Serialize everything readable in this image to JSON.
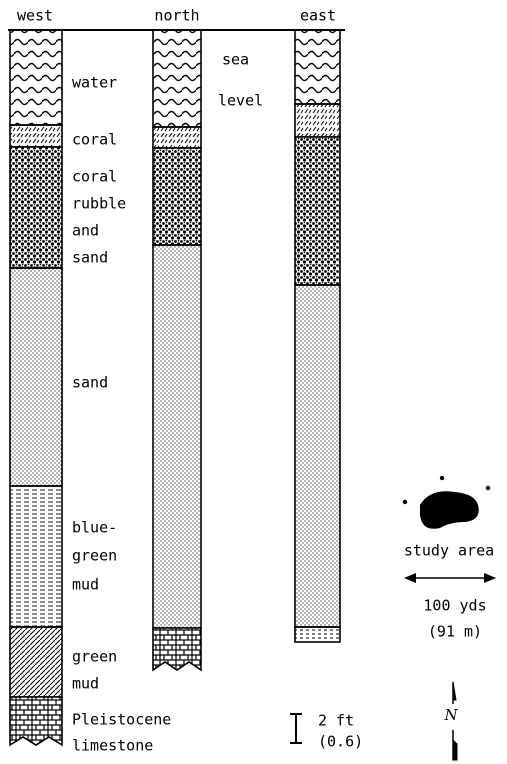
{
  "columns": [
    "west",
    "north",
    "east"
  ],
  "layers": [
    {
      "lines": [
        "water"
      ]
    },
    {
      "lines": [
        "coral"
      ]
    },
    {
      "lines": [
        "coral",
        "rubble",
        "and",
        "sand"
      ]
    },
    {
      "lines": [
        "sand"
      ]
    },
    {
      "lines": [
        "blue-",
        "green",
        "mud"
      ]
    },
    {
      "lines": [
        "green",
        "mud"
      ]
    },
    {
      "lines": [
        "Pleistocene",
        "limestone"
      ]
    }
  ],
  "sea_level": [
    "sea",
    "level"
  ],
  "legend": {
    "study_area": "study area",
    "distance": [
      "100 yds",
      "(91 m)"
    ],
    "scale": [
      "2 ft",
      "(0.6)"
    ],
    "north": "N"
  }
}
